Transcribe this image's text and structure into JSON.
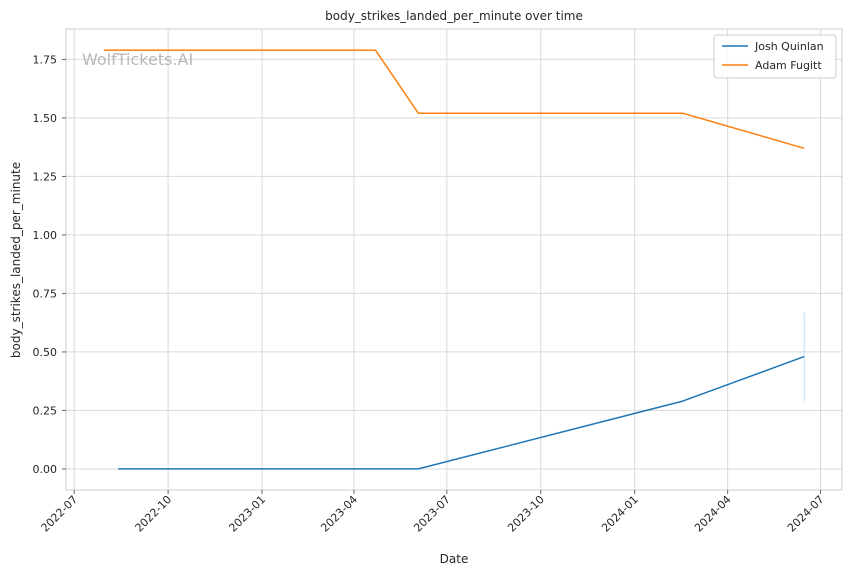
{
  "chart_data": {
    "type": "line",
    "title": "body_strikes_landed_per_minute over time",
    "xlabel": "Date",
    "ylabel": "body_strikes_landed_per_minute",
    "watermark": "WolfTickets.AI",
    "x_ticks": [
      "2022-07",
      "2022-10",
      "2023-01",
      "2023-04",
      "2023-07",
      "2023-10",
      "2024-01",
      "2024-04",
      "2024-07"
    ],
    "y_ticks": [
      "0.00",
      "0.25",
      "0.50",
      "0.75",
      "1.00",
      "1.25",
      "1.50",
      "1.75"
    ],
    "xlim": [
      "2022-06-23",
      "2024-07-22"
    ],
    "ylim": [
      -0.09,
      1.88
    ],
    "grid": true,
    "legend_position": "top-right",
    "series": [
      {
        "name": "Josh Quinlan",
        "color": "#1f77b4",
        "x": [
          "2022-08-13",
          "2023-06-03",
          "2024-02-17",
          "2024-06-15"
        ],
        "y": [
          0.0,
          0.0,
          0.29,
          0.48
        ],
        "error_band": {
          "x": "2024-06-15",
          "low": 0.29,
          "high": 0.67
        }
      },
      {
        "name": "Adam Fugitt",
        "color": "#ff7f0e",
        "x": [
          "2022-07-30",
          "2023-04-22",
          "2023-06-03",
          "2024-02-17",
          "2024-06-15"
        ],
        "y": [
          1.79,
          1.79,
          1.52,
          1.52,
          1.37
        ]
      }
    ]
  }
}
